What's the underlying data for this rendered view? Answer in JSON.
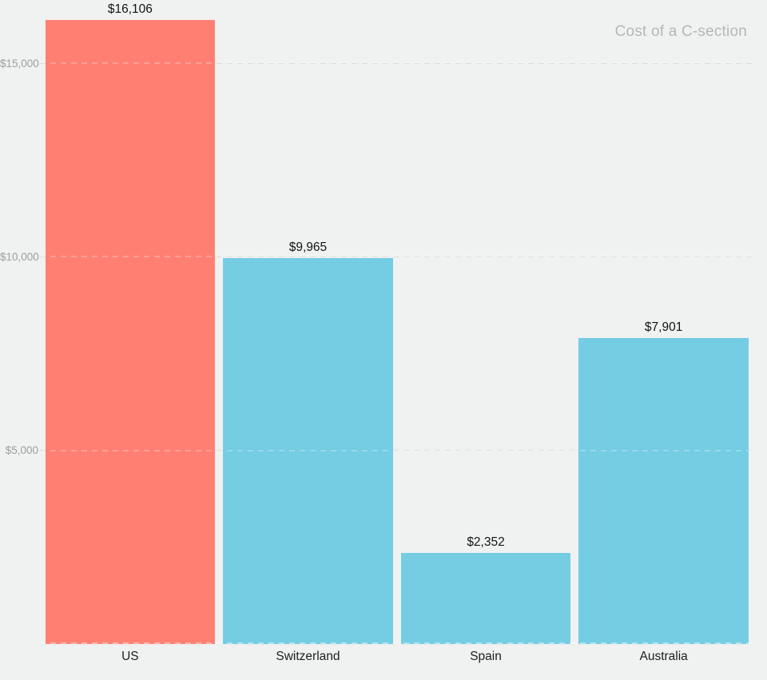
{
  "title": "Cost of a C-section",
  "colors": {
    "background": "#f0f1f1",
    "highlight_bar": "#ff8073",
    "default_bar": "#74cde3",
    "gridline": "#cfd2d2",
    "axis_label": "#9aa0a0",
    "title_text": "#b4b8b8",
    "value_label": "#141414",
    "category_label": "#1d1d1d"
  },
  "chart_data": {
    "type": "bar",
    "title": "Cost of a C-section",
    "categories": [
      "US",
      "Switzerland",
      "Spain",
      "Australia"
    ],
    "values": [
      16106,
      9965,
      2352,
      7901
    ],
    "value_labels": [
      "$16,106",
      "$9,965",
      "$2,352",
      "$7,901"
    ],
    "bar_colors": [
      "#ff8073",
      "#74cde3",
      "#74cde3",
      "#74cde3"
    ],
    "highlighted_category": "US",
    "xlabel": "",
    "ylabel": "",
    "ylim": [
      0,
      16650
    ],
    "yticks": [
      {
        "value": 5000,
        "label": "$5,000"
      },
      {
        "value": 10000,
        "label": "$10,000"
      },
      {
        "value": 15000,
        "label": "$15,000"
      }
    ],
    "grid": "horizontal-dashed",
    "legend": "none",
    "title_position": "top-right"
  }
}
